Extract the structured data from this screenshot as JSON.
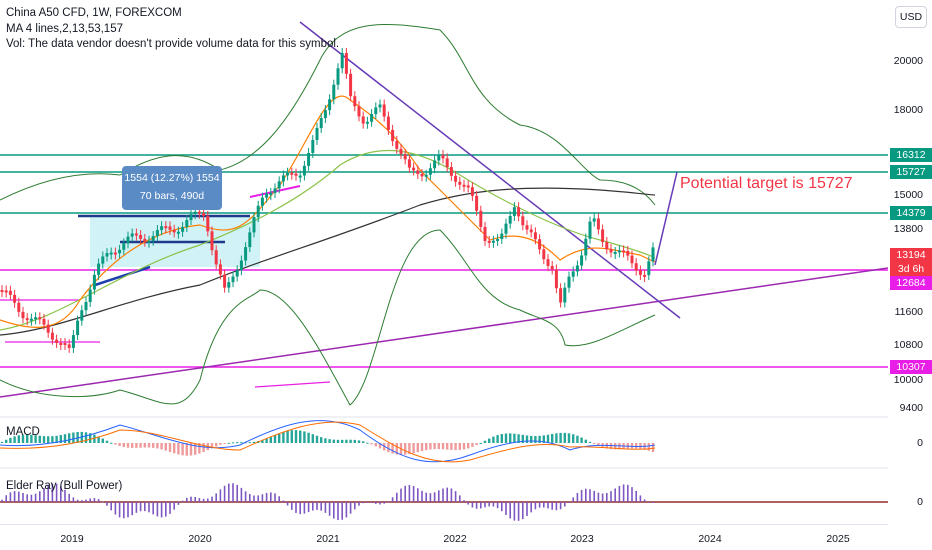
{
  "legend": {
    "symbol_line": "China A50 CFD, 1W, FOREXCOM",
    "ma_line": "MA 4 lines,2,13,53,157",
    "vol_line": "Vol: The data vendor doesn't provide volume data for this symbol."
  },
  "panes": {
    "macd_label": "MACD",
    "elder_label": "Elder Ray (Bull Power)",
    "macd_zero": "0",
    "elder_zero": "0"
  },
  "currency_button": "USD",
  "measure_tool": {
    "line1": "1554 (12.27%) 1554",
    "line2": "70 bars, 490d"
  },
  "annotation_text": "Potential target is 15727",
  "price_axis": [
    "20000",
    "18000",
    "15000",
    "13800",
    "11600",
    "10800",
    "10000",
    "9400"
  ],
  "price_tags": [
    {
      "value": "16312",
      "color": "#089981"
    },
    {
      "value": "15727",
      "color": "#089981"
    },
    {
      "value": "14379",
      "color": "#089981"
    },
    {
      "value": "13194",
      "color": "#f23645"
    },
    {
      "value": "3d 6h",
      "color": "#f23645"
    },
    {
      "value": "12684",
      "color": "#e91ee6"
    },
    {
      "value": "10307",
      "color": "#e91ee6"
    }
  ],
  "time_axis": [
    "2019",
    "2020",
    "2021",
    "2022",
    "2023",
    "2024",
    "2025"
  ],
  "colors": {
    "horizontal_level": "#089981",
    "support_level": "#e91ee6",
    "trendline": "#673ab7",
    "bollinger": "#2e7d32",
    "up_candle": "#089981",
    "down_candle": "#f23645"
  }
}
